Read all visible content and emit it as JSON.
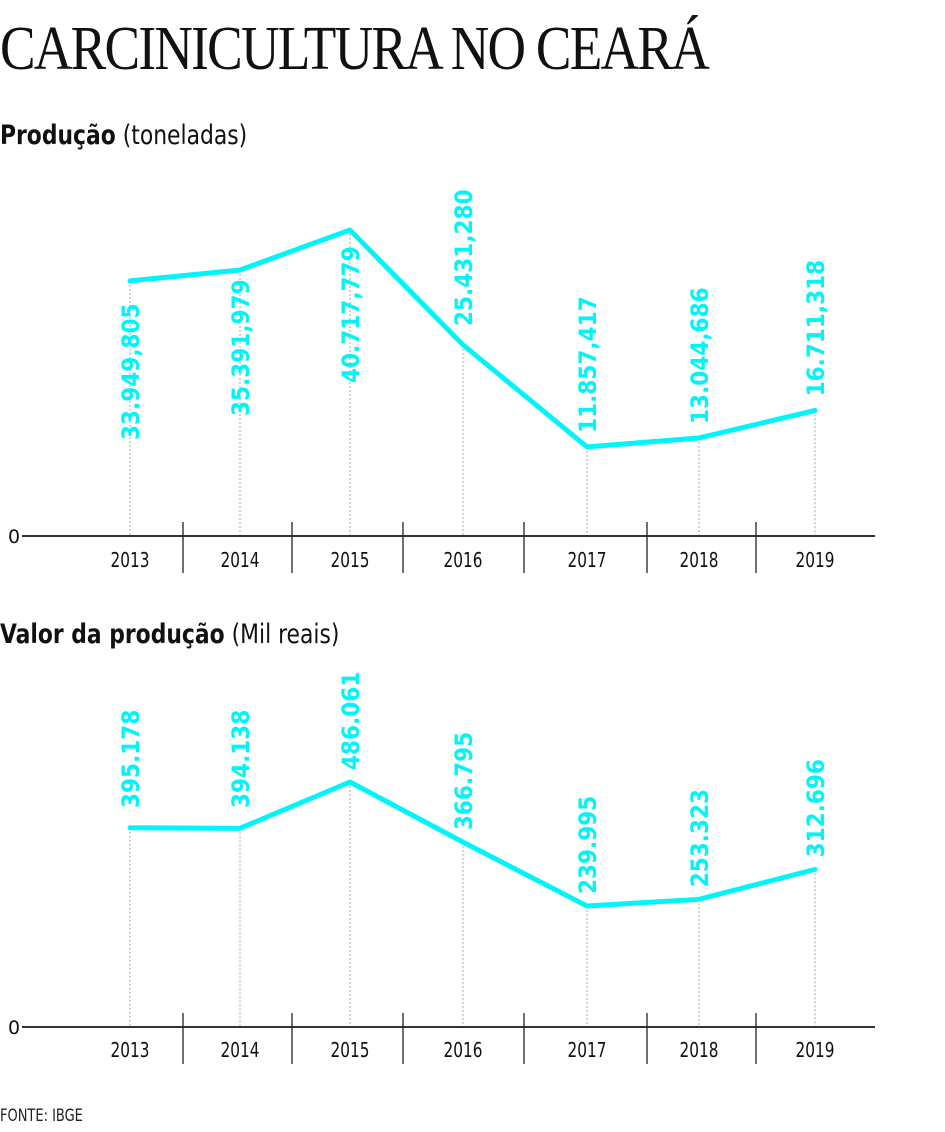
{
  "title": "CARCINICULTURA NO CEARÁ",
  "source": "FONTE: IBGE",
  "colors": {
    "line": "#00F5FA",
    "axis": "#333333",
    "text": "#111111"
  },
  "chart_data": [
    {
      "type": "line",
      "title_bold": "Produção",
      "title_unit": "(toneladas)",
      "categories": [
        "2013",
        "2014",
        "2015",
        "2016",
        "2017",
        "2018",
        "2019"
      ],
      "values": [
        33949.805,
        35391.979,
        40717.779,
        25431.28,
        11857.417,
        13044.686,
        16711.318
      ],
      "labels": [
        "33.949,805",
        "35.391,979",
        "40.717,779",
        "25.431,280",
        "11.857,417",
        "13.044,686",
        "16.711,318"
      ],
      "y_tick_label": "0",
      "ylim": [
        0,
        40717.779
      ]
    },
    {
      "type": "line",
      "title_bold": "Valor da produção",
      "title_unit": "(Mil reais)",
      "categories": [
        "2013",
        "2014",
        "2015",
        "2016",
        "2017",
        "2018",
        "2019"
      ],
      "values": [
        395178,
        394138,
        486061,
        366795,
        239995,
        253323,
        312696
      ],
      "labels": [
        "395.178",
        "394.138",
        "486.061",
        "366.795",
        "239.995",
        "253.323",
        "312.696"
      ],
      "y_tick_label": "0",
      "ylim": [
        0,
        486061
      ]
    }
  ]
}
